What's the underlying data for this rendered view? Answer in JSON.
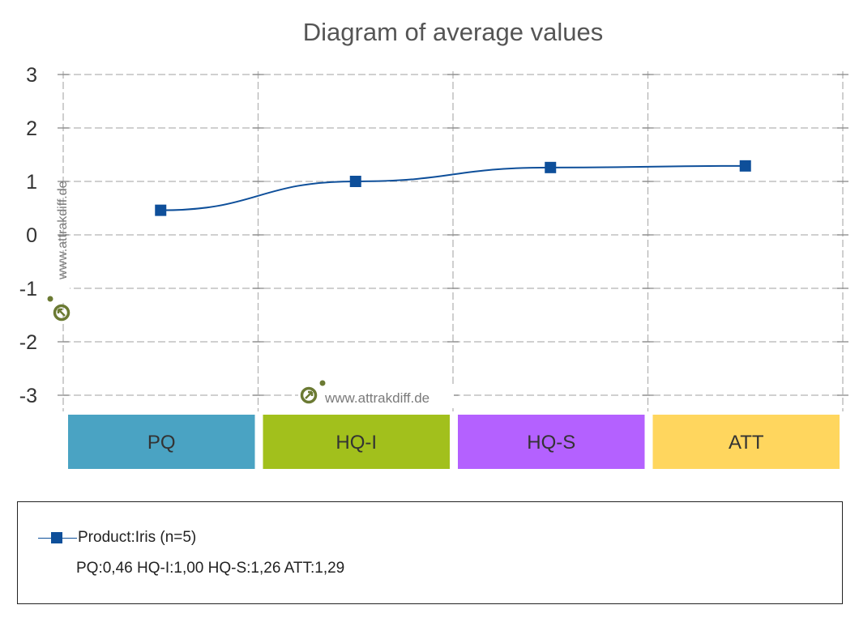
{
  "chart_data": {
    "type": "line",
    "title": "Diagram of average values",
    "categories": [
      "PQ",
      "HQ-I",
      "HQ-S",
      "ATT"
    ],
    "category_colors": [
      "#4aa3c3",
      "#a2c01c",
      "#b461ff",
      "#ffd65e"
    ],
    "series": [
      {
        "name": "Product:Iris (n=5)",
        "values": [
          0.46,
          1.0,
          1.26,
          1.29
        ],
        "color": "#0e4f9a"
      }
    ],
    "ylim": [
      -3,
      3
    ],
    "yticks": [
      "3",
      "2",
      "1",
      "0",
      "-1",
      "-2",
      "-3"
    ],
    "grid": true,
    "legend_position": "bottom",
    "watermark": "www.attrakdiff.de"
  },
  "legend": {
    "series_label": "Product:Iris (n=5)",
    "summary": "PQ:0,46 HQ-I:1,00 HQ-S:1,26 ATT:1,29"
  }
}
